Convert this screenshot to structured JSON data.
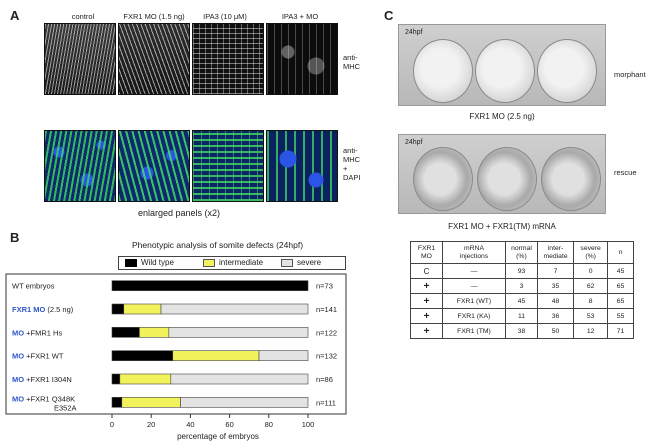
{
  "panel_a": {
    "label": "A",
    "columns": [
      "control",
      "FXR1 MO (1.5 ng)",
      "IPA3 (10 μM)",
      "IPA3 + MO"
    ],
    "row1_label": [
      "anti-",
      "MHC"
    ],
    "row2_label": [
      "anti-",
      "MHC",
      "+",
      "DAPI"
    ],
    "caption": "enlarged panels (x2)"
  },
  "panel_b": {
    "label": "B",
    "legend_items": [
      "Wild type",
      "intermediate",
      "severe"
    ],
    "colors": {
      "wild_type": "#000000",
      "intermediate": "#f2f25c",
      "severe": "#e3e3e3"
    },
    "chart_data": {
      "type": "bar",
      "orientation": "horizontal",
      "stacked": true,
      "title": "Phenotypic analysis of somite defects (24hpf)",
      "xlabel": "percentage of embryos",
      "xlim": [
        0,
        100
      ],
      "xticks": [
        "0",
        "20",
        "40",
        "60",
        "80",
        "100"
      ],
      "categories": [
        {
          "prefix": "",
          "text": "WT embryos",
          "n": "n=73"
        },
        {
          "prefix": "FXR1 MO",
          "text": "(2.5 ng)",
          "n": "n=141"
        },
        {
          "prefix": "MO",
          "text": "+FMR1 Hs",
          "n": "n=122"
        },
        {
          "prefix": "MO",
          "text": "+FXR1 WT",
          "n": "n=132"
        },
        {
          "prefix": "MO",
          "text": "+FXR1 I304N",
          "n": "n=86"
        },
        {
          "prefix": "MO",
          "text": "+FXR1 Q348K",
          "text2": "E352A",
          "n": "n=111"
        }
      ],
      "series": [
        {
          "name": "Wild type",
          "values": [
            100,
            6,
            14,
            31,
            4,
            5
          ]
        },
        {
          "name": "intermediate",
          "values": [
            0,
            19,
            15,
            44,
            26,
            30
          ]
        },
        {
          "name": "severe",
          "values": [
            0,
            75,
            71,
            25,
            70,
            65
          ]
        }
      ]
    }
  },
  "panel_c": {
    "label": "C",
    "img1": {
      "stage": "24hpf",
      "side": "morphant",
      "caption": "FXR1 MO (2.5 ng)"
    },
    "img2": {
      "stage": "24hpf",
      "side": "rescue",
      "caption": "FXR1 MO + FXR1(TM) mRNA"
    },
    "table": {
      "headers": [
        [
          "FXR1",
          "MO"
        ],
        [
          "mRNA",
          "injections"
        ],
        [
          "normal",
          "(%)"
        ],
        [
          "inter-",
          "mediate"
        ],
        [
          "severe",
          "(%)"
        ],
        [
          "n"
        ]
      ],
      "rows": [
        [
          "C",
          "—",
          "93",
          "7",
          "0",
          "45"
        ],
        [
          "+",
          "—",
          "3",
          "35",
          "62",
          "65"
        ],
        [
          "+",
          "FXR1 (WT)",
          "45",
          "48",
          "8",
          "65"
        ],
        [
          "+",
          "FXR1 (KA)",
          "11",
          "36",
          "53",
          "55"
        ],
        [
          "+",
          "FXR1 (TM)",
          "38",
          "50",
          "12",
          "71"
        ]
      ]
    }
  }
}
